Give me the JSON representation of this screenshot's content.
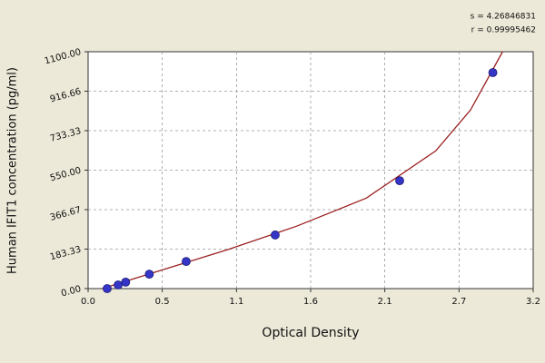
{
  "chart_data": {
    "type": "scatter",
    "annotations": [
      "s = 4.26846831",
      "r = 0.99995462"
    ],
    "xlabel": "Optical Density",
    "ylabel": "Human IFIT1 concentration (pg/ml)",
    "xlim": [
      0,
      3.2
    ],
    "ylim": [
      0,
      1100
    ],
    "xticks": [
      {
        "value": 0,
        "label": "0.0"
      },
      {
        "value": 0.533,
        "label": "0.5"
      },
      {
        "value": 1.067,
        "label": "1.1"
      },
      1.6,
      {
        "value": 2.133,
        "label": "2.1"
      },
      {
        "value": 2.667,
        "label": "2.7"
      },
      3.2
    ],
    "yticks": [
      {
        "value": 0,
        "label": "0.00"
      },
      {
        "value": 183.33,
        "label": "183.33"
      },
      {
        "value": 366.67,
        "label": "366.67"
      },
      {
        "value": 550,
        "label": "550.00"
      },
      {
        "value": 733.33,
        "label": "733.33"
      },
      {
        "value": 916.66,
        "label": "916.66"
      },
      {
        "value": 1100,
        "label": "1100.00"
      }
    ],
    "grid": true,
    "series": [
      {
        "type": "scatter",
        "color": "#3535c8",
        "x": [
          0.137,
          0.216,
          0.27,
          0.44,
          0.705,
          1.345,
          2.24,
          2.91
        ],
        "values": [
          0,
          17,
          30,
          67,
          126,
          249,
          501,
          1003
        ]
      },
      {
        "type": "line",
        "color": "#9a2020",
        "x": [
          0.1,
          0.5,
          1.0,
          1.5,
          2.0,
          2.5,
          2.75,
          2.98
        ],
        "values": [
          0,
          80,
          180,
          290,
          420,
          640,
          830,
          1100
        ]
      }
    ]
  }
}
